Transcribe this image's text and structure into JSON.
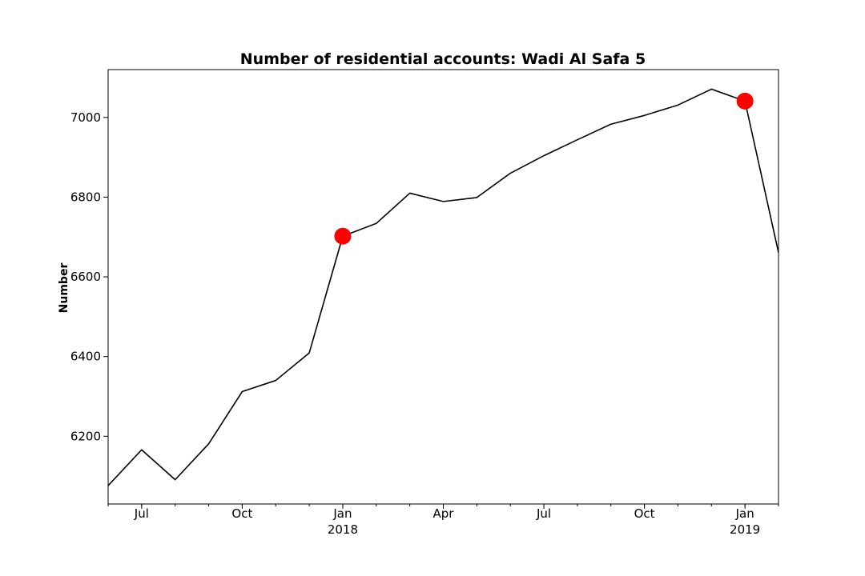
{
  "chart_data": {
    "type": "line",
    "title": "Number of residential accounts: Wadi Al Safa 5",
    "xlabel": "",
    "ylabel": "Number",
    "x": [
      "2017-06",
      "2017-07",
      "2017-08",
      "2017-09",
      "2017-10",
      "2017-11",
      "2017-12",
      "2018-01",
      "2018-02",
      "2018-03",
      "2018-04",
      "2018-05",
      "2018-06",
      "2018-07",
      "2018-08",
      "2018-09",
      "2018-10",
      "2018-11",
      "2018-12",
      "2019-01",
      "2019-02"
    ],
    "series": [
      {
        "values": [
          6076,
          6166,
          6091,
          6181,
          6312,
          6340,
          6409,
          6702,
          6734,
          6810,
          6789,
          6799,
          6860,
          6904,
          6944,
          6983,
          7005,
          7031,
          7071,
          7041,
          6661
        ],
        "color": "#000000"
      }
    ],
    "highlights": [
      {
        "x": "2018-01",
        "y": 6702,
        "color": "#ff0000"
      },
      {
        "x": "2019-01",
        "y": 7041,
        "color": "#ff0000"
      }
    ],
    "ylim": [
      6030,
      7120
    ],
    "yticks": [
      6200,
      6400,
      6600,
      6800,
      7000
    ],
    "xticks": [
      {
        "x": "2017-07",
        "label": "Jul",
        "sublabel": ""
      },
      {
        "x": "2017-10",
        "label": "Oct",
        "sublabel": ""
      },
      {
        "x": "2018-01",
        "label": "Jan",
        "sublabel": "2018"
      },
      {
        "x": "2018-04",
        "label": "Apr",
        "sublabel": ""
      },
      {
        "x": "2018-07",
        "label": "Jul",
        "sublabel": ""
      },
      {
        "x": "2018-10",
        "label": "Oct",
        "sublabel": ""
      },
      {
        "x": "2019-01",
        "label": "Jan",
        "sublabel": "2019"
      }
    ],
    "grid": false,
    "legend": "none"
  }
}
